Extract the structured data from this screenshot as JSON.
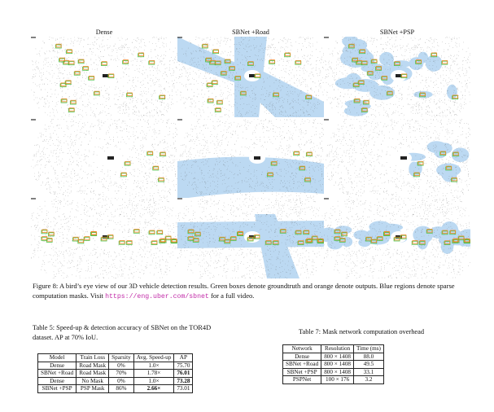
{
  "figure": {
    "columns": [
      "Dense",
      "SBNet +Road",
      "SBNet +PSP"
    ],
    "caption_text": "Figure 8: A bird’s eye view of our 3D vehicle detection results. Green boxes denote groundtruth and orange denote outputs. Blue regions denote sparse computation masks. Visit",
    "caption_url": "https://eng.uber.com/sbnet",
    "caption_tail": "for a full video.",
    "colors": {
      "groundtruth": "#49c247",
      "output": "#f0882a",
      "mask": "#bcd9f2",
      "lidar": "#555555"
    }
  },
  "table5": {
    "caption": "Table 5: Speed-up & detection accuracy of SBNet on the TOR4D dataset. AP at 70% IoU.",
    "headers": [
      "Model",
      "Train Loss",
      "Sparsity",
      "Avg. Speed-up",
      "AP"
    ],
    "rows": [
      [
        "Dense",
        "Road Mask",
        "0%",
        "1.0×",
        "75.70"
      ],
      [
        "SBNet +Road",
        "Road Mask",
        "70%",
        "1.78×",
        "76.01"
      ],
      [
        "Dense",
        "No Mask",
        "0%",
        "1.0×",
        "73.28"
      ],
      [
        "SBNet +PSP",
        "PSP Mask",
        "86%",
        "2.66×",
        "73.01"
      ]
    ]
  },
  "table7": {
    "caption": "Table 7: Mask network computation overhead",
    "headers": [
      "Network",
      "Resolution",
      "Time (ms)"
    ],
    "rows": [
      [
        "Dense",
        "800 × 1408",
        "88.0"
      ],
      [
        "SBNet +Road",
        "800 × 1408",
        "49.5"
      ],
      [
        "SBNet +PSP",
        "800 × 1408",
        "33.1"
      ],
      [
        "PSPNet",
        "100 × 176",
        "3.2"
      ]
    ]
  }
}
